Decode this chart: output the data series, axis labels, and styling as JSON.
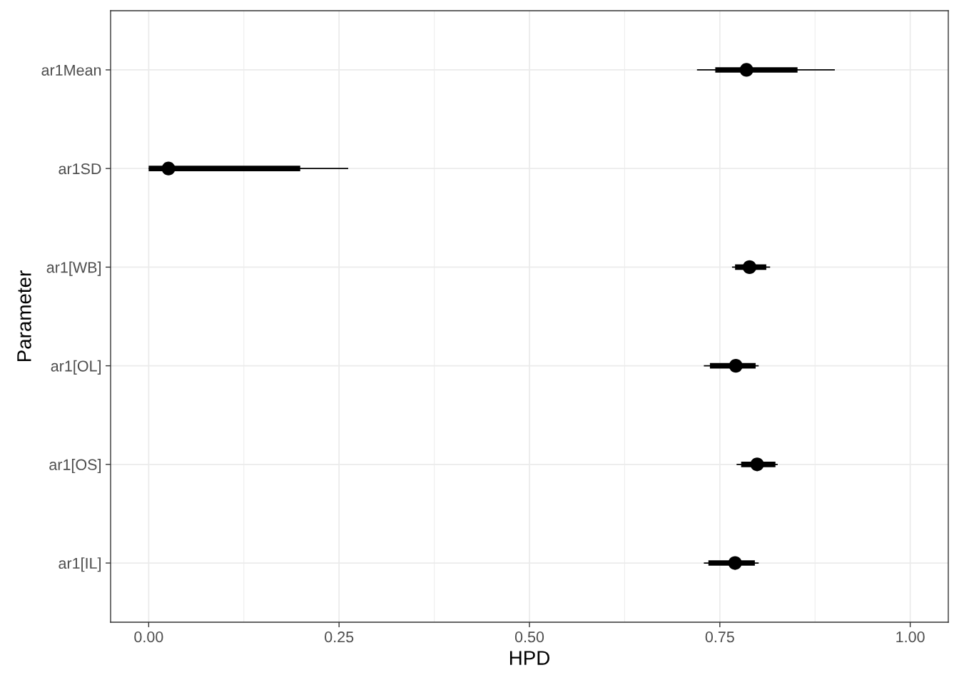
{
  "chart_data": {
    "type": "scatter",
    "orientation": "horizontal",
    "xlabel": "HPD",
    "ylabel": "Parameter",
    "categories": [
      "ar1Mean",
      "ar1SD",
      "ar1[WB]",
      "ar1[OL]",
      "ar1[OS]",
      "ar1[IL]"
    ],
    "series": [
      {
        "type": "bar",
        "color": "#000000",
        "base": [
          0.744,
          0.0,
          0.77,
          0.737,
          0.778,
          0.735
        ],
        "values": [
          0.108,
          0.199,
          0.041,
          0.06,
          0.045,
          0.061
        ]
      },
      {
        "color": "#000000",
        "marker": "circle",
        "values": [
          0.785,
          0.026,
          0.789,
          0.771,
          0.799,
          0.77
        ],
        "errors": [
          [
            0.72,
            0.901
          ],
          [
            0.0,
            0.262
          ],
          [
            0.766,
            0.816
          ],
          [
            0.729,
            0.801
          ],
          [
            0.772,
            0.826
          ],
          [
            0.729,
            0.801
          ]
        ]
      }
    ],
    "xlim": [
      -0.05,
      1.05
    ],
    "xticks": [
      {
        "value": 0,
        "label": "0.00"
      },
      {
        "value": 0.125,
        "label": null
      },
      {
        "value": 0.25,
        "label": "0.25"
      },
      {
        "value": 0.375,
        "label": null
      },
      {
        "value": 0.5,
        "label": "0.50"
      },
      {
        "value": 0.625,
        "label": null
      },
      {
        "value": 0.75,
        "label": "0.75"
      },
      {
        "value": 0.875,
        "label": null
      },
      {
        "value": 1,
        "label": "1.00"
      }
    ],
    "grid": true
  }
}
